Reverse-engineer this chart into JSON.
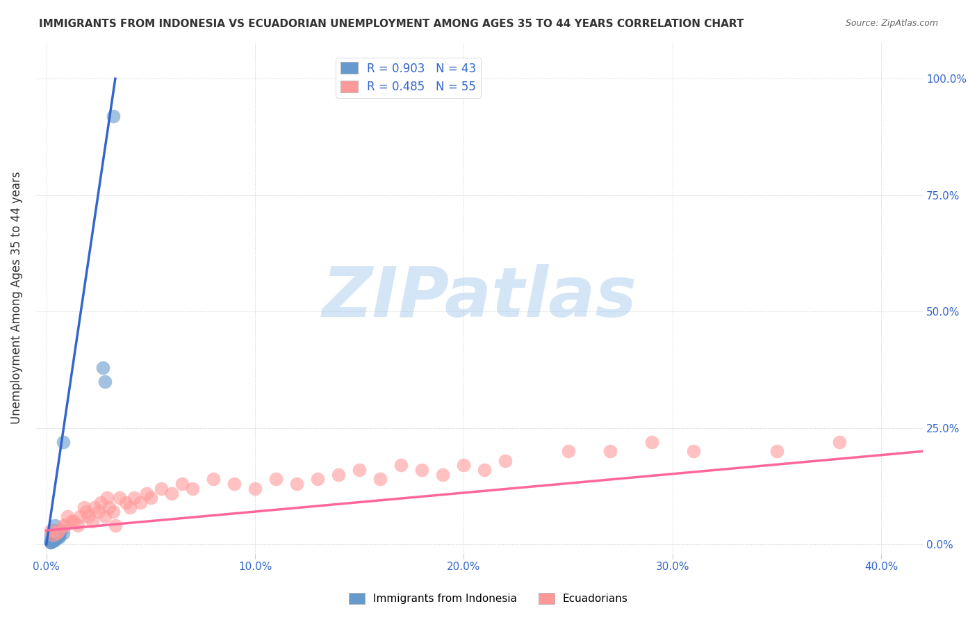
{
  "title": "IMMIGRANTS FROM INDONESIA VS ECUADORIAN UNEMPLOYMENT AMONG AGES 35 TO 44 YEARS CORRELATION CHART",
  "source": "Source: ZipAtlas.com",
  "xlabel_ticks": [
    "0.0%",
    "10.0%",
    "20.0%",
    "30.0%",
    "40.0%"
  ],
  "xlabel_vals": [
    0.0,
    0.1,
    0.2,
    0.3,
    0.4
  ],
  "ylabel": "Unemployment Among Ages 35 to 44 years",
  "ylabel_ticks": [
    "0.0%",
    "25.0%",
    "50.0%",
    "75.0%",
    "100.0%"
  ],
  "ylabel_vals": [
    0.0,
    0.25,
    0.5,
    0.75,
    1.0
  ],
  "xlim": [
    -0.005,
    0.42
  ],
  "ylim": [
    -0.02,
    1.08
  ],
  "blue_R": 0.903,
  "blue_N": 43,
  "pink_R": 0.485,
  "pink_N": 55,
  "blue_color": "#6699CC",
  "pink_color": "#FF9999",
  "blue_line_color": "#3366CC",
  "pink_line_color": "#FF6699",
  "watermark": "ZIPatlas",
  "watermark_color": "#AACCEE",
  "background_color": "#FFFFFF",
  "blue_scatter_x": [
    0.002,
    0.003,
    0.004,
    0.003,
    0.005,
    0.004,
    0.006,
    0.003,
    0.002,
    0.004,
    0.005,
    0.003,
    0.007,
    0.004,
    0.003,
    0.002,
    0.006,
    0.005,
    0.003,
    0.004,
    0.005,
    0.004,
    0.003,
    0.006,
    0.008,
    0.003,
    0.005,
    0.004,
    0.002,
    0.003,
    0.008,
    0.004,
    0.003,
    0.005,
    0.006,
    0.004,
    0.003,
    0.002,
    0.004,
    0.005,
    0.027,
    0.028,
    0.032
  ],
  "blue_scatter_y": [
    0.02,
    0.03,
    0.04,
    0.015,
    0.025,
    0.018,
    0.03,
    0.02,
    0.01,
    0.015,
    0.025,
    0.01,
    0.03,
    0.02,
    0.01,
    0.005,
    0.015,
    0.02,
    0.008,
    0.012,
    0.018,
    0.025,
    0.015,
    0.02,
    0.22,
    0.008,
    0.015,
    0.012,
    0.005,
    0.01,
    0.025,
    0.012,
    0.008,
    0.015,
    0.02,
    0.01,
    0.008,
    0.005,
    0.012,
    0.015,
    0.38,
    0.35,
    0.92
  ],
  "pink_scatter_x": [
    0.002,
    0.005,
    0.008,
    0.01,
    0.012,
    0.015,
    0.018,
    0.02,
    0.022,
    0.025,
    0.028,
    0.03,
    0.032,
    0.035,
    0.038,
    0.04,
    0.042,
    0.045,
    0.048,
    0.05,
    0.055,
    0.06,
    0.065,
    0.07,
    0.08,
    0.09,
    0.1,
    0.11,
    0.12,
    0.13,
    0.14,
    0.15,
    0.16,
    0.17,
    0.18,
    0.19,
    0.2,
    0.21,
    0.22,
    0.25,
    0.27,
    0.29,
    0.31,
    0.35,
    0.38,
    0.003,
    0.006,
    0.009,
    0.013,
    0.016,
    0.019,
    0.023,
    0.026,
    0.029,
    0.033
  ],
  "pink_scatter_y": [
    0.03,
    0.025,
    0.04,
    0.06,
    0.05,
    0.04,
    0.08,
    0.06,
    0.05,
    0.07,
    0.06,
    0.08,
    0.07,
    0.1,
    0.09,
    0.08,
    0.1,
    0.09,
    0.11,
    0.1,
    0.12,
    0.11,
    0.13,
    0.12,
    0.14,
    0.13,
    0.12,
    0.14,
    0.13,
    0.14,
    0.15,
    0.16,
    0.14,
    0.17,
    0.16,
    0.15,
    0.17,
    0.16,
    0.18,
    0.2,
    0.2,
    0.22,
    0.2,
    0.2,
    0.22,
    0.02,
    0.03,
    0.04,
    0.05,
    0.06,
    0.07,
    0.08,
    0.09,
    0.1,
    0.04
  ],
  "blue_line_x": [
    0.0,
    0.033
  ],
  "blue_line_y": [
    0.0,
    1.0
  ],
  "pink_line_x": [
    0.0,
    0.42
  ],
  "pink_line_y": [
    0.03,
    0.2
  ]
}
